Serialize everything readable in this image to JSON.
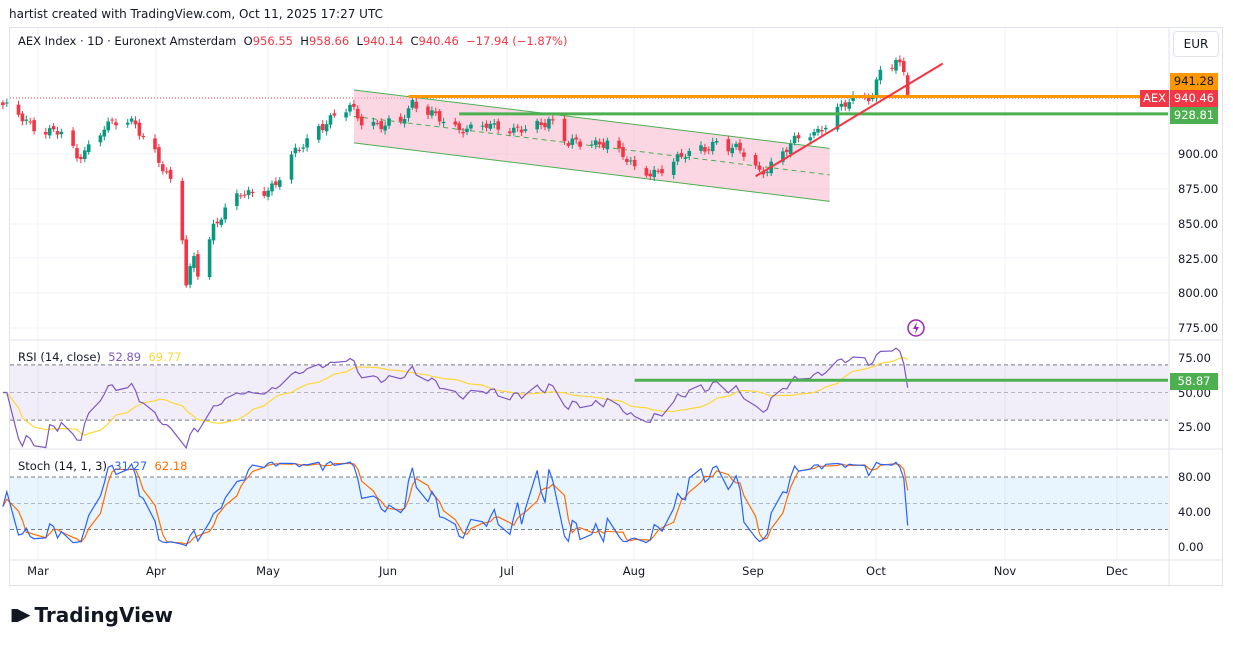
{
  "credit": "hartist created with TradingView.com, Oct 11, 2025 17:27 UTC",
  "legend": {
    "symbol": "AEX Index · 1D · Euronext Amsterdam",
    "o_label": "O",
    "o": "956.55",
    "h_label": "H",
    "h": "958.66",
    "l_label": "L",
    "l": "940.14",
    "c_label": "C",
    "c": "940.46",
    "change": "−17.94 (−1.87%)"
  },
  "currency": "EUR",
  "symbol_tag": "AEX",
  "brand": "TradingView",
  "colors": {
    "up": "#089981",
    "down": "#f23645",
    "orange": "#ff9800",
    "green": "#4caf50",
    "rsi": "#7e57c2",
    "rsi_ma": "#fdd835",
    "stoch_k": "#2962ff",
    "stoch_d": "#ff6d00",
    "channel": "#f8bbd0"
  },
  "chart_data": {
    "type": "candlestick",
    "title": "AEX Index · 1D · Euronext Amsterdam",
    "ylim": [
      765,
      975
    ],
    "y_ticks": [
      "900.00",
      "875.00",
      "850.00",
      "825.00",
      "800.00",
      "775.00"
    ],
    "x_ticks": [
      "Mar",
      "Apr",
      "May",
      "Jun",
      "Jul",
      "Aug",
      "Sep",
      "Oct",
      "Nov",
      "Dec"
    ],
    "last": {
      "open": 956.55,
      "high": 958.66,
      "low": 940.14,
      "close": 940.46
    },
    "key_closes": [
      [
        "2025-02-20",
        933
      ],
      [
        "2025-02-28",
        921
      ],
      [
        "2025-03-07",
        914
      ],
      [
        "2025-03-11",
        896
      ],
      [
        "2025-03-18",
        921
      ],
      [
        "2025-03-26",
        921
      ],
      [
        "2025-03-31",
        903
      ],
      [
        "2025-04-04",
        878
      ],
      [
        "2025-04-07",
        838
      ],
      [
        "2025-04-08",
        805
      ],
      [
        "2025-04-10",
        827
      ],
      [
        "2025-04-11",
        817
      ],
      [
        "2025-04-15",
        849
      ],
      [
        "2025-04-22",
        870
      ],
      [
        "2025-05-01",
        878
      ],
      [
        "2025-05-05",
        896
      ],
      [
        "2025-05-12",
        921
      ],
      [
        "2025-05-20",
        932
      ],
      [
        "2025-05-23",
        924
      ],
      [
        "2025-06-02",
        921
      ],
      [
        "2025-06-05",
        935
      ],
      [
        "2025-06-10",
        932
      ],
      [
        "2025-06-17",
        914
      ],
      [
        "2025-06-24",
        924
      ],
      [
        "2025-07-01",
        914
      ],
      [
        "2025-07-10",
        926
      ],
      [
        "2025-07-15",
        906
      ],
      [
        "2025-07-25",
        910
      ],
      [
        "2025-08-01",
        888
      ],
      [
        "2025-08-05",
        887
      ],
      [
        "2025-08-15",
        899
      ],
      [
        "2025-08-22",
        910
      ],
      [
        "2025-08-29",
        899
      ],
      [
        "2025-09-02",
        887
      ],
      [
        "2025-09-10",
        906
      ],
      [
        "2025-09-17",
        917
      ],
      [
        "2025-09-22",
        933
      ],
      [
        "2025-10-01",
        942
      ],
      [
        "2025-10-03",
        964
      ],
      [
        "2025-10-07",
        966
      ],
      [
        "2025-10-09",
        959
      ],
      [
        "2025-10-10",
        940.46
      ]
    ],
    "price_levels": [
      {
        "name": "orange-level",
        "value": 941.28,
        "label": "941.28",
        "from": "2025-06-04"
      },
      {
        "name": "green-level",
        "value": 928.81,
        "label": "928.81",
        "from": "2025-06-17"
      }
    ],
    "last_price_label": "940.46",
    "channel": {
      "from": "2025-05-21",
      "to": "2025-09-20",
      "upper": [
        946,
        904
      ],
      "lower": [
        908,
        866
      ]
    },
    "trendline": {
      "from": [
        "2025-09-01",
        884
      ],
      "to": [
        "2025-10-19",
        965
      ]
    },
    "rsi": {
      "label": "RSI (14, close)",
      "value": "52.89",
      "ma": "69.77",
      "ticks": [
        "75.00",
        "50.00",
        "25.00"
      ],
      "level": {
        "value": 58.87,
        "label": "58.87",
        "from": "2025-08-01"
      }
    },
    "stoch": {
      "label": "Stoch (14, 1, 3)",
      "k": "31.27",
      "d": "62.18",
      "ticks": [
        "80.00",
        "40.00",
        "0.00"
      ]
    }
  }
}
